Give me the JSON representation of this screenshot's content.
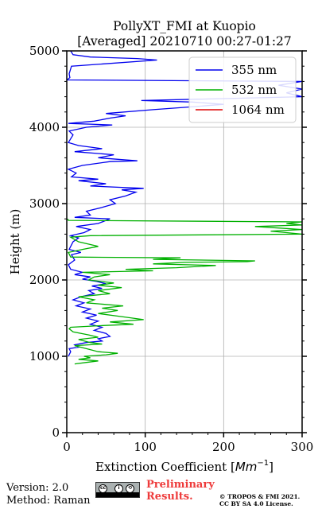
{
  "chart_data": {
    "type": "line",
    "title": "PollyXT_FMI at Kuopio",
    "subtitle": "[Averaged] 20210710 00:27-01:27",
    "xlabel": "Extinction Coefficient [",
    "xlabel_math": "Mm",
    "xlabel_sup": "−1",
    "xlabel_close": "]",
    "ylabel": "Height (m)",
    "xlim": [
      0,
      300
    ],
    "ylim": [
      0,
      5000
    ],
    "x_ticks": [
      0,
      100,
      200,
      300
    ],
    "y_ticks": [
      0,
      1000,
      2000,
      3000,
      4000,
      5000
    ],
    "x_tick_labels": [
      "0",
      "100",
      "200",
      "300"
    ],
    "y_tick_labels": [
      "0",
      "1000",
      "2000",
      "3000",
      "4000",
      "5000"
    ],
    "grid": true,
    "legend_position": "top-right",
    "series": [
      {
        "name": "355 nm",
        "color": "#0000ee",
        "points": [
          [
            2,
            1000
          ],
          [
            5,
            1060
          ],
          [
            3,
            1100
          ],
          [
            15,
            1120
          ],
          [
            10,
            1150
          ],
          [
            25,
            1180
          ],
          [
            45,
            1200
          ],
          [
            40,
            1230
          ],
          [
            55,
            1260
          ],
          [
            50,
            1300
          ],
          [
            35,
            1340
          ],
          [
            45,
            1380
          ],
          [
            30,
            1420
          ],
          [
            40,
            1460
          ],
          [
            25,
            1500
          ],
          [
            38,
            1540
          ],
          [
            20,
            1580
          ],
          [
            30,
            1620
          ],
          [
            12,
            1660
          ],
          [
            22,
            1700
          ],
          [
            8,
            1740
          ],
          [
            18,
            1780
          ],
          [
            35,
            1820
          ],
          [
            28,
            1860
          ],
          [
            45,
            1890
          ],
          [
            32,
            1920
          ],
          [
            50,
            1950
          ],
          [
            38,
            1980
          ],
          [
            20,
            2010
          ],
          [
            30,
            2040
          ],
          [
            10,
            2070
          ],
          [
            20,
            2100
          ],
          [
            5,
            2140
          ],
          [
            2,
            2200
          ],
          [
            10,
            2260
          ],
          [
            6,
            2330
          ],
          [
            18,
            2360
          ],
          [
            3,
            2400
          ],
          [
            8,
            2500
          ],
          [
            15,
            2550
          ],
          [
            5,
            2580
          ],
          [
            22,
            2620
          ],
          [
            30,
            2660
          ],
          [
            12,
            2700
          ],
          [
            40,
            2740
          ],
          [
            55,
            2800
          ],
          [
            10,
            2820
          ],
          [
            30,
            2850
          ],
          [
            25,
            2900
          ],
          [
            45,
            2950
          ],
          [
            62,
            3000
          ],
          [
            55,
            3050
          ],
          [
            75,
            3100
          ],
          [
            88,
            3150
          ],
          [
            70,
            3180
          ],
          [
            98,
            3200
          ],
          [
            30,
            3230
          ],
          [
            50,
            3260
          ],
          [
            15,
            3300
          ],
          [
            40,
            3320
          ],
          [
            6,
            3350
          ],
          [
            12,
            3400
          ],
          [
            2,
            3450
          ],
          [
            20,
            3500
          ],
          [
            55,
            3550
          ],
          [
            90,
            3560
          ],
          [
            40,
            3600
          ],
          [
            60,
            3640
          ],
          [
            10,
            3680
          ],
          [
            45,
            3720
          ],
          [
            15,
            3760
          ],
          [
            2,
            3800
          ],
          [
            8,
            3900
          ],
          [
            3,
            3950
          ],
          [
            25,
            4000
          ],
          [
            58,
            4030
          ],
          [
            2,
            4050
          ],
          [
            35,
            4080
          ],
          [
            55,
            4120
          ],
          [
            75,
            4150
          ],
          [
            50,
            4180
          ],
          [
            110,
            4230
          ],
          [
            150,
            4260
          ],
          [
            200,
            4300
          ],
          [
            160,
            4330
          ],
          [
            95,
            4350
          ],
          [
            300,
            4400
          ],
          [
            280,
            4450
          ],
          [
            300,
            4500
          ],
          [
            270,
            4550
          ],
          [
            300,
            4600
          ],
          [
            0,
            4620
          ],
          [
            4,
            4650
          ],
          [
            3,
            4700
          ],
          [
            6,
            4800
          ],
          [
            115,
            4880
          ],
          [
            90,
            4900
          ],
          [
            30,
            4920
          ],
          [
            8,
            4950
          ],
          [
            5,
            5000
          ]
        ]
      },
      {
        "name": "532 nm",
        "color": "#00b000",
        "points": [
          [
            10,
            900
          ],
          [
            25,
            920
          ],
          [
            40,
            940
          ],
          [
            15,
            960
          ],
          [
            30,
            980
          ],
          [
            22,
            1000
          ],
          [
            50,
            1020
          ],
          [
            65,
            1040
          ],
          [
            40,
            1060
          ],
          [
            25,
            1100
          ],
          [
            10,
            1140
          ],
          [
            45,
            1160
          ],
          [
            30,
            1180
          ],
          [
            15,
            1220
          ],
          [
            40,
            1250
          ],
          [
            28,
            1280
          ],
          [
            8,
            1320
          ],
          [
            3,
            1360
          ],
          [
            5,
            1380
          ],
          [
            40,
            1400
          ],
          [
            85,
            1420
          ],
          [
            55,
            1450
          ],
          [
            98,
            1480
          ],
          [
            70,
            1520
          ],
          [
            40,
            1560
          ],
          [
            65,
            1600
          ],
          [
            45,
            1630
          ],
          [
            72,
            1660
          ],
          [
            25,
            1700
          ],
          [
            35,
            1740
          ],
          [
            15,
            1780
          ],
          [
            55,
            1820
          ],
          [
            40,
            1860
          ],
          [
            70,
            1900
          ],
          [
            40,
            1930
          ],
          [
            60,
            1960
          ],
          [
            28,
            2000
          ],
          [
            35,
            2040
          ],
          [
            55,
            2070
          ],
          [
            20,
            2100
          ],
          [
            110,
            2120
          ],
          [
            75,
            2140
          ],
          [
            140,
            2160
          ],
          [
            190,
            2190
          ],
          [
            110,
            2210
          ],
          [
            150,
            2230
          ],
          [
            230,
            2240
          ],
          [
            240,
            2250
          ],
          [
            110,
            2270
          ],
          [
            145,
            2290
          ],
          [
            5,
            2300
          ],
          [
            2,
            2360
          ],
          [
            20,
            2400
          ],
          [
            40,
            2440
          ],
          [
            15,
            2500
          ],
          [
            5,
            2560
          ],
          [
            30,
            2580
          ],
          [
            300,
            2600
          ],
          [
            280,
            2620
          ],
          [
            260,
            2640
          ],
          [
            300,
            2660
          ],
          [
            270,
            2680
          ],
          [
            240,
            2700
          ],
          [
            300,
            2720
          ],
          [
            280,
            2740
          ],
          [
            300,
            2760
          ],
          [
            2,
            2780
          ],
          [
            1,
            2800
          ]
        ]
      },
      {
        "name": "1064 nm",
        "color": "#dd0000",
        "points": []
      }
    ]
  },
  "footer": {
    "version": "Version: 2.0",
    "method": "Method: Raman",
    "preliminary_line1": "Preliminary",
    "preliminary_line2": "Results.",
    "copyright_line1": "© TROPOS & FMI 2021.",
    "copyright_line2": "CC BY SA 4.0 License."
  },
  "license_icons": [
    "cc-icon",
    "by-icon",
    "sa-icon"
  ]
}
